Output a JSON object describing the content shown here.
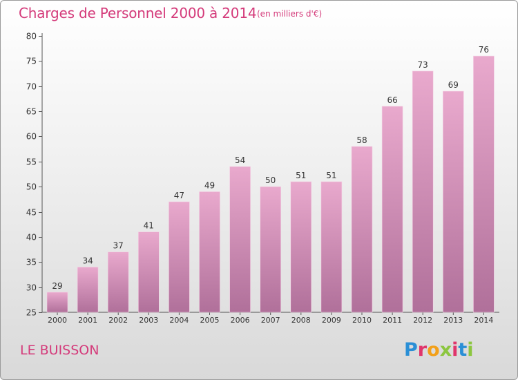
{
  "title": "Charges de Personnel 2000 à 2014",
  "subtitle": "(en milliers d'€)",
  "location": "LE BUISSON",
  "logo": {
    "text": "Proxiti",
    "letters": [
      {
        "char": "P",
        "color": "#2a8fd6"
      },
      {
        "char": "r",
        "color": "#e0356b"
      },
      {
        "char": "o",
        "color": "#f2a01a"
      },
      {
        "char": "x",
        "color": "#8cc63f"
      },
      {
        "char": "i",
        "color": "#e0356b"
      },
      {
        "char": "t",
        "color": "#2a8fd6"
      },
      {
        "char": "i",
        "color": "#8cc63f"
      }
    ]
  },
  "colors": {
    "accent": "#d43a7a",
    "bar_top": "#e9a9cd",
    "bar_bottom": "#b0709a"
  },
  "chart_data": {
    "type": "bar",
    "categories": [
      "2000",
      "2001",
      "2002",
      "2003",
      "2004",
      "2005",
      "2006",
      "2007",
      "2008",
      "2009",
      "2010",
      "2011",
      "2012",
      "2013",
      "2014"
    ],
    "values": [
      29,
      34,
      37,
      41,
      47,
      49,
      54,
      50,
      51,
      51,
      58,
      66,
      73,
      69,
      76
    ],
    "ylim": [
      25,
      80
    ],
    "yticks": [
      25,
      30,
      35,
      40,
      45,
      50,
      55,
      60,
      65,
      70,
      75,
      80
    ],
    "grid": false
  }
}
